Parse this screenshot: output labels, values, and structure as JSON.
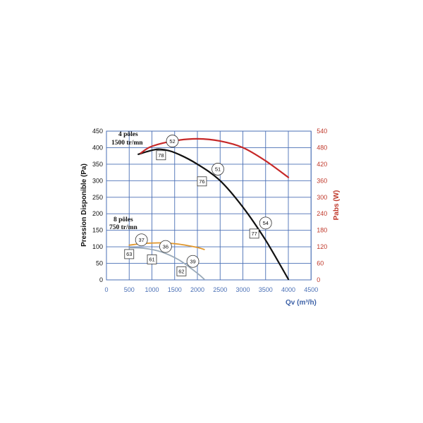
{
  "chart_data": {
    "type": "line",
    "xlabel": "Qv (m³/h)",
    "ylabel_left": "Pression Disponible (Pa)",
    "ylabel_right": "Pabs (W)",
    "xlim": [
      0,
      4500
    ],
    "ylim_left": [
      0,
      450
    ],
    "ylim_right": [
      0,
      540
    ],
    "x_ticks": [
      0,
      500,
      1000,
      1500,
      2000,
      2500,
      3000,
      3500,
      4000,
      4500
    ],
    "y_ticks_left": [
      0,
      50,
      100,
      150,
      200,
      250,
      300,
      350,
      400,
      450
    ],
    "y_ticks_right": [
      0,
      60,
      120,
      180,
      240,
      300,
      360,
      420,
      480,
      540
    ],
    "grid": true,
    "colors": {
      "grid": "#4a6fb5",
      "right_axis": "#c0392b",
      "pressure_4p": "#111111",
      "power_4p": "#c62828",
      "power_8p": "#e0962b",
      "pressure_8p": "#9aaab8"
    },
    "series": [
      {
        "group": "4 pôles 1500 tr/mn",
        "axis": "left",
        "kind": "pressure",
        "x": [
          700,
          1000,
          1200,
          1500,
          2000,
          2500,
          3000,
          3500,
          4000
        ],
        "y": [
          380,
          392,
          395,
          385,
          350,
          300,
          220,
          120,
          2
        ]
      },
      {
        "group": "4 pôles 1500 tr/mn",
        "axis": "right",
        "kind": "power",
        "x": [
          750,
          1000,
          1500,
          2000,
          2500,
          3000,
          3500,
          4000
        ],
        "y": [
          460,
          485,
          505,
          512,
          504,
          480,
          432,
          372
        ]
      },
      {
        "group": "8 pôles 750 tr/mn",
        "axis": "left",
        "kind": "power",
        "x": [
          500,
          800,
          1200,
          1600,
          2000,
          2150
        ],
        "y": [
          105,
          110,
          112,
          108,
          98,
          92
        ]
      },
      {
        "group": "8 pôles 750 tr/mn",
        "axis": "left",
        "kind": "pressure",
        "x": [
          500,
          800,
          1200,
          1600,
          2000,
          2150
        ],
        "y": [
          97,
          96,
          85,
          60,
          20,
          2
        ]
      }
    ],
    "annotations": {
      "circles": [
        {
          "text": "52",
          "x": 1450,
          "y": 420
        },
        {
          "text": "51",
          "x": 2450,
          "y": 335
        },
        {
          "text": "54",
          "x": 3500,
          "y": 172
        },
        {
          "text": "37",
          "x": 770,
          "y": 121
        },
        {
          "text": "36",
          "x": 1300,
          "y": 101
        },
        {
          "text": "39",
          "x": 1900,
          "y": 56
        }
      ],
      "boxes": [
        {
          "text": "78",
          "x": 1200,
          "y": 377
        },
        {
          "text": "76",
          "x": 2100,
          "y": 298
        },
        {
          "text": "77",
          "x": 3250,
          "y": 140
        },
        {
          "text": "63",
          "x": 500,
          "y": 78
        },
        {
          "text": "61",
          "x": 1000,
          "y": 62
        },
        {
          "text": "62",
          "x": 1650,
          "y": 26
        }
      ]
    },
    "group_labels": [
      {
        "line1": "4 pôles",
        "line2": "1500 tr/mn"
      },
      {
        "line1": "8 pôles",
        "line2": "750 tr/mn"
      }
    ]
  }
}
